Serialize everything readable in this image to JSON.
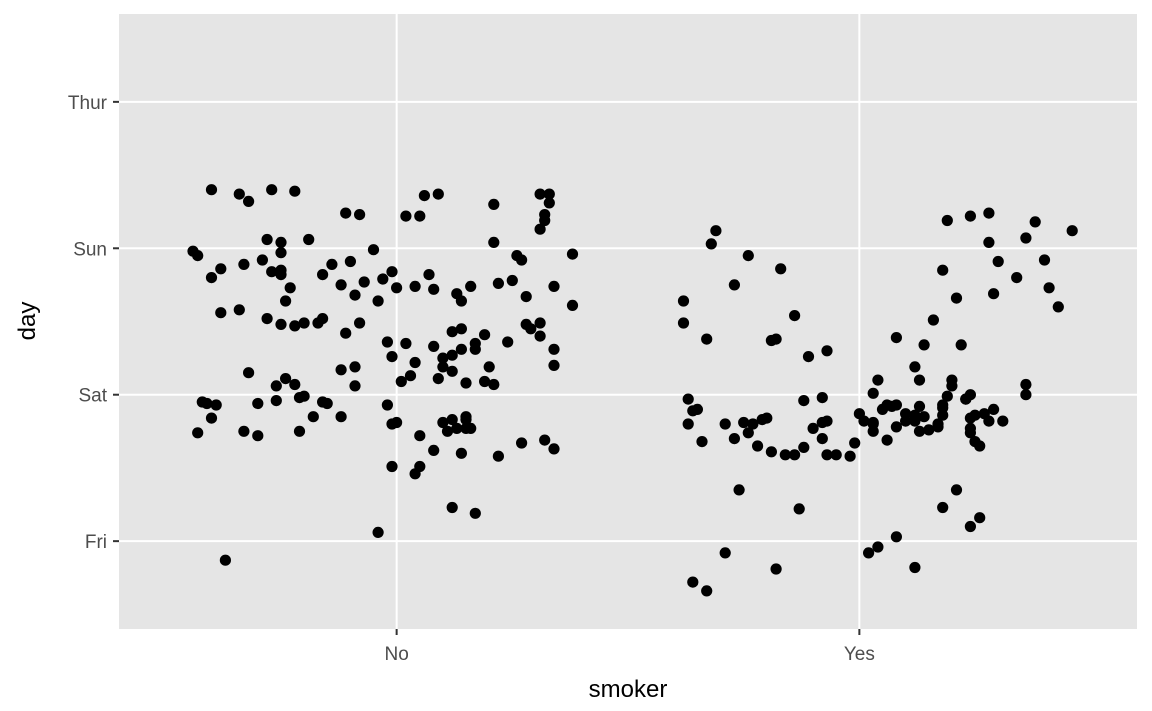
{
  "chart_data": {
    "type": "scatter",
    "title": "",
    "xlabel": "smoker",
    "ylabel": "day",
    "x_categories": [
      "No",
      "Yes"
    ],
    "y_categories": [
      "Fri",
      "Sat",
      "Sun",
      "Thur"
    ],
    "grid": true,
    "legend": "none",
    "colors": {
      "panel": "#e5e5e5",
      "grid": "#ffffff",
      "point": "#000000",
      "tick": "#333333",
      "tick_label": "#4d4d4d"
    },
    "points": [
      [
        0.6,
        3.4
      ],
      [
        0.66,
        3.37
      ],
      [
        0.68,
        3.32
      ],
      [
        0.73,
        3.4
      ],
      [
        0.78,
        3.39
      ],
      [
        0.72,
        3.06
      ],
      [
        0.75,
        3.04
      ],
      [
        0.81,
        3.06
      ],
      [
        0.89,
        3.24
      ],
      [
        0.92,
        3.23
      ],
      [
        0.95,
        2.99
      ],
      [
        1.06,
        3.36
      ],
      [
        1.05,
        3.22
      ],
      [
        1.02,
        3.22
      ],
      [
        1.09,
        3.37
      ],
      [
        1.21,
        3.3
      ],
      [
        1.21,
        3.04
      ],
      [
        1.31,
        3.13
      ],
      [
        1.32,
        3.23
      ],
      [
        1.32,
        3.19
      ],
      [
        1.33,
        3.37
      ],
      [
        1.31,
        3.37
      ],
      [
        1.33,
        3.31
      ],
      [
        0.75,
        2.97
      ],
      [
        0.71,
        2.92
      ],
      [
        0.67,
        2.89
      ],
      [
        0.62,
        2.86
      ],
      [
        0.57,
        2.95
      ],
      [
        0.6,
        2.8
      ],
      [
        0.73,
        2.84
      ],
      [
        0.75,
        2.82
      ],
      [
        0.86,
        2.89
      ],
      [
        0.84,
        2.82
      ],
      [
        0.9,
        2.91
      ],
      [
        0.93,
        2.77
      ],
      [
        0.99,
        2.84
      ],
      [
        1.08,
        2.72
      ],
      [
        1.07,
        2.82
      ],
      [
        1.04,
        2.74
      ],
      [
        1.16,
        2.74
      ],
      [
        1.13,
        2.69
      ],
      [
        1.14,
        2.64
      ],
      [
        1.22,
        2.76
      ],
      [
        1.27,
        2.92
      ],
      [
        1.26,
        2.95
      ],
      [
        1.38,
        2.96
      ],
      [
        1.38,
        2.61
      ],
      [
        1.28,
        2.67
      ],
      [
        1.34,
        2.74
      ],
      [
        1.25,
        2.78
      ],
      [
        0.97,
        2.79
      ],
      [
        0.96,
        2.64
      ],
      [
        1.0,
        2.73
      ],
      [
        0.91,
        2.68
      ],
      [
        0.88,
        2.75
      ],
      [
        0.77,
        2.73
      ],
      [
        0.75,
        2.85
      ],
      [
        0.56,
        2.98
      ],
      [
        0.62,
        2.56
      ],
      [
        0.66,
        2.58
      ],
      [
        0.72,
        2.52
      ],
      [
        0.75,
        2.48
      ],
      [
        0.76,
        2.64
      ],
      [
        0.78,
        2.47
      ],
      [
        0.8,
        2.49
      ],
      [
        0.83,
        2.49
      ],
      [
        0.84,
        2.52
      ],
      [
        0.92,
        2.49
      ],
      [
        0.89,
        2.42
      ],
      [
        0.98,
        2.36
      ],
      [
        0.99,
        2.26
      ],
      [
        1.02,
        2.35
      ],
      [
        1.04,
        2.22
      ],
      [
        1.08,
        2.33
      ],
      [
        1.12,
        2.43
      ],
      [
        1.17,
        2.35
      ],
      [
        1.14,
        2.45
      ],
      [
        1.19,
        2.41
      ],
      [
        1.24,
        2.36
      ],
      [
        1.31,
        2.4
      ],
      [
        1.31,
        2.49
      ],
      [
        1.34,
        2.31
      ],
      [
        1.34,
        2.2
      ],
      [
        1.29,
        2.45
      ],
      [
        1.28,
        2.48
      ],
      [
        1.17,
        2.31
      ],
      [
        1.14,
        2.31
      ],
      [
        1.12,
        2.27
      ],
      [
        1.12,
        2.16
      ],
      [
        1.1,
        2.19
      ],
      [
        1.1,
        2.25
      ],
      [
        1.15,
        2.08
      ],
      [
        1.19,
        2.09
      ],
      [
        1.2,
        2.19
      ],
      [
        1.21,
        2.07
      ],
      [
        1.09,
        2.11
      ],
      [
        1.03,
        2.13
      ],
      [
        1.01,
        2.09
      ],
      [
        0.98,
        1.93
      ],
      [
        0.91,
        2.06
      ],
      [
        0.79,
        1.98
      ],
      [
        0.74,
        2.06
      ],
      [
        0.61,
        1.93
      ],
      [
        0.68,
        2.15
      ],
      [
        0.76,
        2.11
      ],
      [
        0.78,
        2.07
      ],
      [
        0.85,
        1.94
      ],
      [
        0.84,
        1.95
      ],
      [
        0.8,
        1.99
      ],
      [
        0.74,
        1.96
      ],
      [
        0.7,
        1.94
      ],
      [
        0.58,
        1.95
      ],
      [
        0.88,
        2.17
      ],
      [
        0.91,
        2.19
      ],
      [
        0.88,
        1.85
      ],
      [
        0.99,
        1.8
      ],
      [
        1.0,
        1.81
      ],
      [
        1.05,
        1.72
      ],
      [
        1.11,
        1.75
      ],
      [
        1.15,
        1.77
      ],
      [
        1.15,
        1.83
      ],
      [
        1.15,
        1.85
      ],
      [
        1.16,
        1.77
      ],
      [
        1.12,
        1.83
      ],
      [
        1.1,
        1.81
      ],
      [
        1.08,
        1.62
      ],
      [
        1.13,
        1.77
      ],
      [
        1.05,
        1.51
      ],
      [
        0.99,
        1.51
      ],
      [
        1.04,
        1.46
      ],
      [
        1.27,
        1.67
      ],
      [
        1.32,
        1.69
      ],
      [
        1.14,
        1.6
      ],
      [
        1.22,
        1.58
      ],
      [
        1.34,
        1.63
      ],
      [
        1.17,
        1.19
      ],
      [
        1.12,
        1.23
      ],
      [
        0.57,
        1.74
      ],
      [
        0.59,
        1.94
      ],
      [
        0.6,
        1.84
      ],
      [
        0.79,
        1.75
      ],
      [
        0.7,
        1.72
      ],
      [
        0.67,
        1.75
      ],
      [
        0.96,
        1.06
      ],
      [
        0.63,
        0.87
      ],
      [
        0.82,
        1.85
      ],
      [
        1.62,
        2.64
      ],
      [
        1.69,
        3.12
      ],
      [
        1.67,
        2.38
      ],
      [
        1.81,
        2.37
      ],
      [
        1.82,
        2.38
      ],
      [
        1.73,
        2.75
      ],
      [
        1.68,
        3.03
      ],
      [
        1.62,
        2.49
      ],
      [
        1.76,
        2.95
      ],
      [
        1.83,
        2.86
      ],
      [
        1.86,
        2.54
      ],
      [
        1.89,
        2.26
      ],
      [
        1.93,
        2.3
      ],
      [
        2.06,
        1.93
      ],
      [
        2.08,
        1.93
      ],
      [
        2.13,
        2.1
      ],
      [
        2.12,
        2.19
      ],
      [
        2.22,
        2.34
      ],
      [
        2.23,
        1.97
      ],
      [
        2.2,
        2.1
      ],
      [
        2.24,
        2.0
      ],
      [
        2.19,
        3.19
      ],
      [
        2.18,
        2.85
      ],
      [
        2.24,
        3.22
      ],
      [
        2.28,
        3.24
      ],
      [
        2.3,
        2.91
      ],
      [
        2.28,
        3.04
      ],
      [
        2.36,
        3.07
      ],
      [
        2.4,
        2.92
      ],
      [
        2.41,
        2.73
      ],
      [
        2.43,
        2.6
      ],
      [
        2.46,
        3.12
      ],
      [
        2.38,
        3.18
      ],
      [
        2.34,
        2.8
      ],
      [
        2.29,
        2.69
      ],
      [
        2.21,
        2.66
      ],
      [
        2.16,
        2.51
      ],
      [
        2.14,
        2.34
      ],
      [
        2.08,
        2.39
      ],
      [
        2.12,
        1.82
      ],
      [
        2.13,
        1.92
      ],
      [
        2.05,
        1.9
      ],
      [
        2.07,
        1.92
      ],
      [
        2.04,
        2.1
      ],
      [
        2.14,
        1.85
      ],
      [
        2.1,
        1.87
      ],
      [
        2.18,
        1.86
      ],
      [
        2.23,
        1.97
      ],
      [
        2.25,
        1.86
      ],
      [
        2.24,
        1.84
      ],
      [
        2.2,
        2.06
      ],
      [
        2.27,
        1.87
      ],
      [
        2.29,
        1.9
      ],
      [
        2.31,
        1.82
      ],
      [
        2.36,
        2.07
      ],
      [
        2.36,
        2.0
      ],
      [
        2.28,
        1.82
      ],
      [
        2.12,
        1.86
      ],
      [
        2.03,
        2.01
      ],
      [
        2.03,
        1.75
      ],
      [
        2.01,
        1.82
      ],
      [
        1.99,
        1.67
      ],
      [
        2.03,
        1.81
      ],
      [
        1.92,
        1.98
      ],
      [
        1.88,
        1.96
      ],
      [
        1.8,
        1.84
      ],
      [
        1.79,
        1.83
      ],
      [
        1.77,
        1.8
      ],
      [
        1.63,
        1.8
      ],
      [
        1.64,
        1.89
      ],
      [
        1.65,
        1.9
      ],
      [
        1.63,
        1.97
      ],
      [
        1.66,
        1.68
      ],
      [
        1.71,
        1.8
      ],
      [
        1.76,
        1.74
      ],
      [
        1.75,
        1.81
      ],
      [
        1.73,
        1.7
      ],
      [
        1.78,
        1.65
      ],
      [
        1.81,
        1.61
      ],
      [
        1.84,
        1.59
      ],
      [
        1.86,
        1.59
      ],
      [
        1.88,
        1.64
      ],
      [
        1.92,
        1.7
      ],
      [
        1.9,
        1.77
      ],
      [
        1.93,
        1.59
      ],
      [
        1.95,
        1.59
      ],
      [
        1.98,
        1.58
      ],
      [
        1.92,
        1.81
      ],
      [
        1.93,
        1.82
      ],
      [
        2.0,
        1.87
      ],
      [
        2.03,
        1.8
      ],
      [
        2.06,
        1.69
      ],
      [
        2.08,
        1.78
      ],
      [
        2.1,
        1.82
      ],
      [
        2.13,
        1.75
      ],
      [
        2.15,
        1.76
      ],
      [
        2.17,
        1.8
      ],
      [
        2.18,
        1.93
      ],
      [
        2.24,
        1.77
      ],
      [
        2.24,
        1.74
      ],
      [
        2.26,
        1.65
      ],
      [
        2.25,
        1.68
      ],
      [
        2.19,
        1.99
      ],
      [
        2.18,
        1.91
      ],
      [
        2.17,
        1.78
      ],
      [
        1.74,
        1.35
      ],
      [
        1.87,
        1.22
      ],
      [
        2.02,
        0.92
      ],
      [
        2.04,
        0.96
      ],
      [
        2.08,
        1.03
      ],
      [
        2.12,
        0.82
      ],
      [
        2.18,
        1.23
      ],
      [
        2.21,
        1.35
      ],
      [
        2.24,
        1.1
      ],
      [
        2.26,
        1.16
      ],
      [
        1.82,
        0.81
      ],
      [
        1.71,
        0.92
      ],
      [
        1.64,
        0.72
      ],
      [
        1.67,
        0.66
      ]
    ]
  }
}
